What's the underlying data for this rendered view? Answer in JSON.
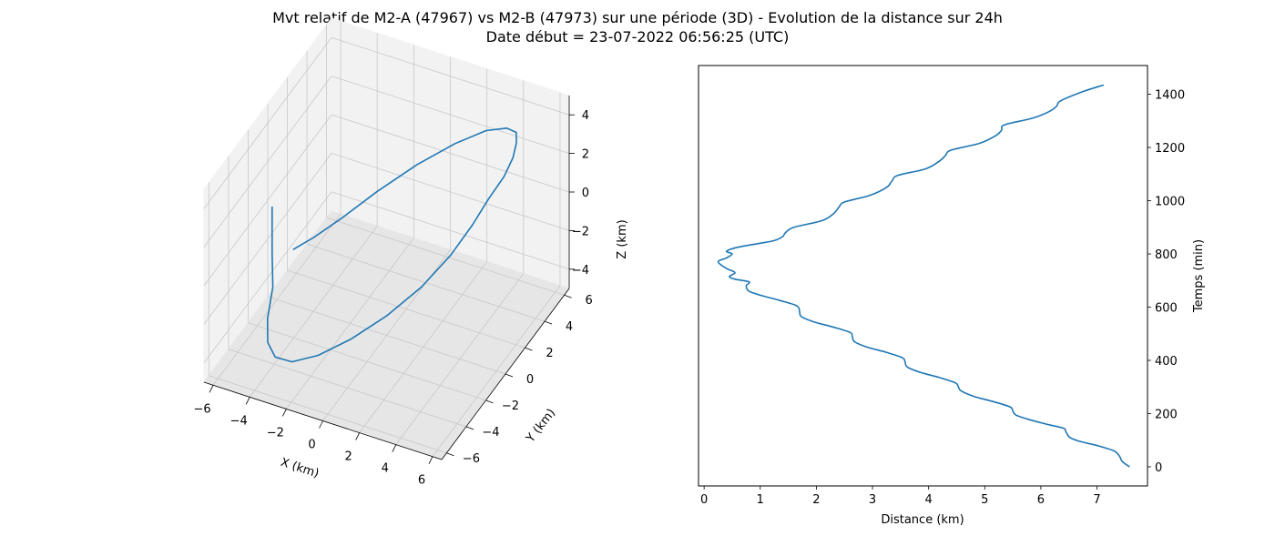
{
  "figure": {
    "title_line1": "Mvt relatif de M2-A (47967) vs M2-B (47973) sur une période (3D) - Evolution de la distance sur 24h",
    "title_line2": "Date début = 23-07-2022 06:56:25 (UTC)"
  },
  "chart_data": [
    {
      "type": "line3d",
      "xlabel": "X (km)",
      "ylabel": "Y (km)",
      "zlabel": "Z (km)",
      "xticks": [
        -6,
        -4,
        -2,
        0,
        2,
        4,
        6
      ],
      "yticks": [
        -6,
        -4,
        -2,
        0,
        2,
        4,
        6
      ],
      "zticks": [
        -4,
        -2,
        0,
        2,
        4
      ],
      "xlim": [
        -6.5,
        6.5
      ],
      "ylim": [
        -6.5,
        6.5
      ],
      "zlim": [
        -5.0,
        5.0
      ],
      "grid": true,
      "series": [
        {
          "color": "#1f77b4",
          "x": [
            -6.1,
            -6.1,
            -5.9,
            -5.6,
            -5.0,
            -4.0,
            -2.6,
            -0.9,
            0.9,
            2.6,
            4.0,
            5.0,
            5.6,
            5.9,
            6.1,
            6.0,
            5.6,
            5.0,
            4.0,
            2.6,
            0.9,
            -0.9,
            -2.6,
            -3.9,
            -4.9,
            -5.6
          ],
          "y": [
            -0.3,
            -0.3,
            -0.6,
            -1.7,
            -2.8,
            -3.9,
            -4.8,
            -5.3,
            -5.3,
            -4.8,
            -3.9,
            -2.8,
            -1.7,
            -0.6,
            0.6,
            1.7,
            2.8,
            3.9,
            4.8,
            5.3,
            5.3,
            4.8,
            3.9,
            2.8,
            1.7,
            0.9
          ],
          "z": [
            0.0,
            -2.4,
            -3.9,
            -4.7,
            -5.0,
            -4.7,
            -3.9,
            -2.7,
            -1.3,
            0.1,
            1.4,
            2.6,
            3.6,
            4.3,
            4.7,
            4.9,
            4.8,
            4.4,
            3.7,
            2.8,
            1.6,
            0.3,
            -1.0,
            -2.0,
            -2.6,
            -2.9
          ]
        }
      ]
    },
    {
      "type": "line",
      "xlabel": "Distance (km)",
      "ylabel": "Temps (min)",
      "xticks": [
        0,
        1,
        2,
        3,
        4,
        5,
        6,
        7
      ],
      "yticks": [
        0,
        200,
        400,
        600,
        800,
        1000,
        1200,
        1400
      ],
      "xlim": [
        -0.1,
        7.9
      ],
      "ylim": [
        -72,
        1508
      ],
      "grid": false,
      "series": [
        {
          "color": "#1f77b4",
          "x": [
            7.58,
            7.45,
            7.4,
            7.3,
            7.0,
            6.7,
            6.52,
            6.45,
            6.4,
            6.1,
            5.75,
            5.55,
            5.5,
            5.45,
            5.15,
            4.8,
            4.58,
            4.53,
            4.48,
            4.2,
            3.85,
            3.62,
            3.58,
            3.53,
            3.25,
            2.9,
            2.68,
            2.64,
            2.6,
            2.3,
            1.95,
            1.73,
            1.7,
            1.65,
            1.35,
            1.0,
            0.8,
            0.75,
            0.8,
            0.55,
            0.45,
            0.55,
            0.4,
            0.25,
            0.4,
            0.5,
            0.4,
            0.6,
            1.0,
            1.25,
            1.4,
            1.45,
            1.6,
            2.1,
            2.3,
            2.4,
            2.5,
            2.95,
            3.25,
            3.35,
            3.45,
            3.95,
            4.2,
            4.3,
            4.4,
            4.9,
            5.2,
            5.3,
            5.35,
            5.85,
            6.15,
            6.28,
            6.35,
            6.75,
            7.12
          ],
          "y": [
            0,
            20,
            40,
            60,
            80,
            95,
            110,
            130,
            145,
            160,
            180,
            195,
            210,
            225,
            245,
            265,
            285,
            300,
            315,
            335,
            355,
            375,
            395,
            410,
            430,
            450,
            470,
            490,
            505,
            525,
            545,
            565,
            585,
            605,
            625,
            645,
            660,
            680,
            695,
            705,
            715,
            730,
            745,
            770,
            785,
            800,
            810,
            825,
            840,
            850,
            865,
            880,
            900,
            925,
            950,
            975,
            995,
            1020,
            1050,
            1075,
            1095,
            1120,
            1150,
            1170,
            1190,
            1215,
            1245,
            1265,
            1285,
            1310,
            1335,
            1355,
            1375,
            1410,
            1435
          ]
        }
      ]
    }
  ]
}
